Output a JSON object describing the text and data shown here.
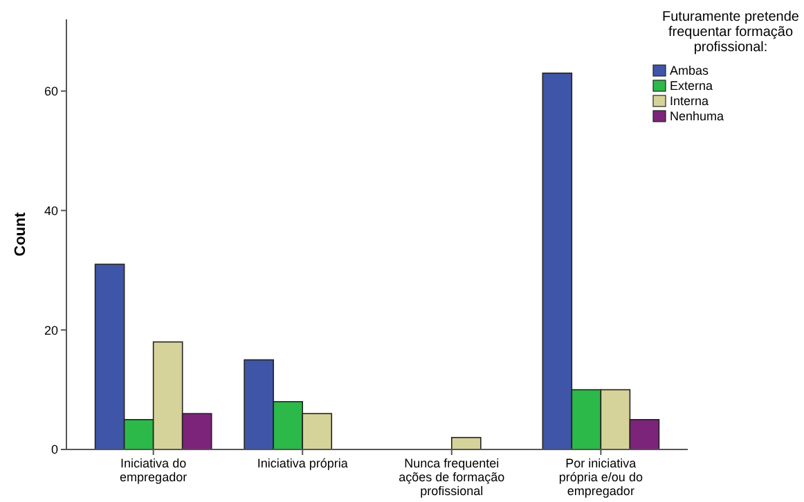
{
  "chart_data": {
    "type": "bar",
    "ylabel": "Count",
    "legend_title": "Futuramente pretende frequentar formação profissional:",
    "categories": [
      "Iniciativa do empregador",
      "Iniciativa própria",
      "Nunca frequentei ações de formação profissional",
      "Por iniciativa própria e/ou do empregador"
    ],
    "series": [
      {
        "name": "Ambas",
        "color": "#3f55a8",
        "values": [
          31,
          15,
          null,
          63
        ]
      },
      {
        "name": "Externa",
        "color": "#2db84a",
        "values": [
          5,
          8,
          null,
          10
        ]
      },
      {
        "name": "Interna",
        "color": "#d6d39a",
        "values": [
          18,
          6,
          2,
          10
        ]
      },
      {
        "name": "Nenhuma",
        "color": "#7b2479",
        "values": [
          6,
          null,
          null,
          5
        ]
      }
    ],
    "ylim": [
      0,
      72
    ],
    "yticks": [
      0,
      20,
      40,
      60
    ],
    "grid": false,
    "legend": "top right"
  }
}
